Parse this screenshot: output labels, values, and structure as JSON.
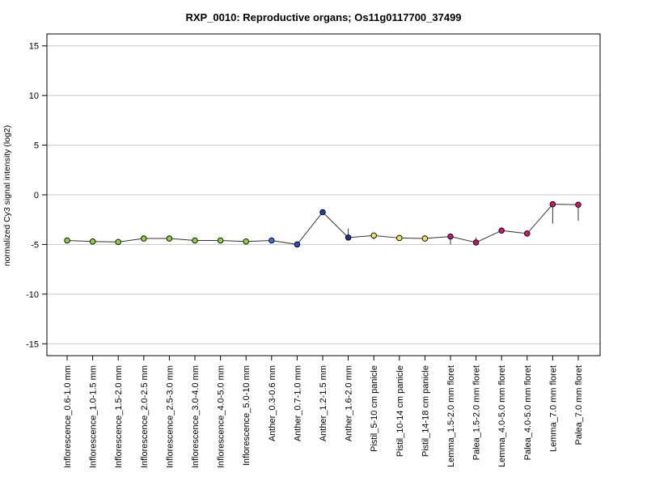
{
  "chart_data": {
    "type": "line",
    "title": "RXP_0010: Reproductive organs; Os11g0117700_37499",
    "ylabel": "normalized Cy3 signal intensity (log2)",
    "xlabel": "",
    "ylim": [
      -16.2,
      16.2
    ],
    "yticks": [
      15,
      10,
      5,
      0,
      -5,
      -10,
      -15
    ],
    "grid": true,
    "categories": [
      "Inflorescence_0.6-1.0 mm",
      "Inflorescence_1.0-1.5 mm",
      "Inflorescence_1.5-2.0 mm",
      "Inflorescence_2.0-2.5 mm",
      "Inflorescence_2.5-3.0 mm",
      "Inflorescence_3.0-4.0 mm",
      "Inflorescence_4.0-5.0 mm",
      "Inflorescence_5.0-10 mm",
      "Anther_0.3-0.6 mm",
      "Anther_0.7-1.0 mm",
      "Anther_1.2-1.5 mm",
      "Anther_1.6-2.0 mm",
      "Pistil_5-10 cm panicle",
      "Pistil_10-14 cm panicle",
      "Pistil_14-18 cm panicle",
      "Lemma_1.5-2.0 mm floret",
      "Palea_1.5-2.0 mm floret",
      "Lemma_4.0-5.0 mm floret",
      "Palea_4.0-5.0 mm floret",
      "Lemma_7.0 mm floret",
      "Palea_7.0 mm floret"
    ],
    "values": [
      -4.6,
      -4.7,
      -4.75,
      -4.4,
      -4.4,
      -4.6,
      -4.6,
      -4.7,
      -4.6,
      -5.0,
      -1.75,
      -4.3,
      -4.1,
      -4.35,
      -4.4,
      -4.2,
      -4.8,
      -3.6,
      -3.9,
      -0.95,
      -1.0
    ],
    "error_low": [
      -4.6,
      -4.7,
      -4.75,
      -4.4,
      -4.4,
      -4.6,
      -4.6,
      -4.7,
      -4.6,
      -5.0,
      -2.0,
      -4.3,
      -4.5,
      -4.35,
      -4.4,
      -5.0,
      -4.8,
      -3.6,
      -3.9,
      -2.9,
      -2.6
    ],
    "error_high": [
      -4.6,
      -4.7,
      -4.75,
      -4.4,
      -4.4,
      -4.6,
      -4.6,
      -4.7,
      -4.6,
      -5.0,
      -1.75,
      -3.4,
      -4.1,
      -4.35,
      -4.4,
      -4.2,
      -4.3,
      -3.6,
      -3.9,
      -0.95,
      -1.0
    ],
    "point_colors": [
      "#8cd23c",
      "#8cd23c",
      "#8cd23c",
      "#8cd23c",
      "#8cd23c",
      "#8cd23c",
      "#8cd23c",
      "#8cd23c",
      "#3a6fd8",
      "#2a4fc0",
      "#1e3fa8",
      "#1a2f90",
      "#f0e060",
      "#f0e060",
      "#f0e060",
      "#b0207a",
      "#c01870",
      "#c81870",
      "#d0186a",
      "#d8106a",
      "#d8106a"
    ]
  }
}
